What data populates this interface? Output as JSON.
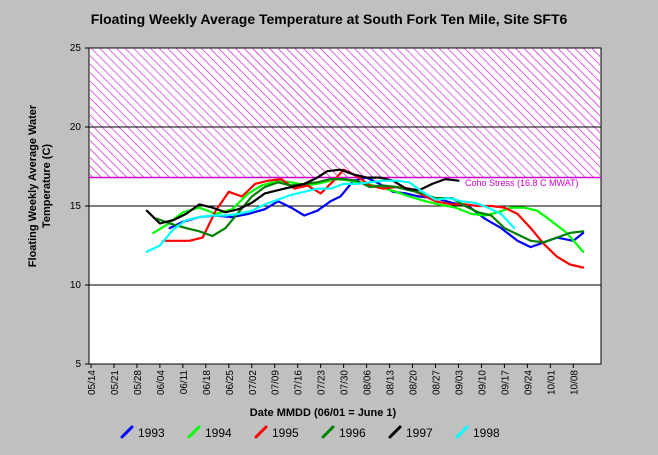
{
  "chart_data": {
    "type": "line",
    "title": "Floating Weekly Average Temperature at South Fork Ten Mile, Site SFT6",
    "xlabel": "Date MMDD (06/01 = June 1)",
    "ylabel_line1": "Floating Weekly Average Water",
    "ylabel_line2": "Temperature (C)",
    "ylim": [
      5,
      25
    ],
    "yticks": [
      5,
      10,
      15,
      20,
      25
    ],
    "xlim": [
      0,
      153
    ],
    "xticks": [
      {
        "label": "05/14",
        "day": 0
      },
      {
        "label": "05/21",
        "day": 7
      },
      {
        "label": "05/28",
        "day": 14
      },
      {
        "label": "06/04",
        "day": 21
      },
      {
        "label": "06/11",
        "day": 28
      },
      {
        "label": "06/18",
        "day": 35
      },
      {
        "label": "06/25",
        "day": 42
      },
      {
        "label": "07/02",
        "day": 49
      },
      {
        "label": "07/09",
        "day": 56
      },
      {
        "label": "07/16",
        "day": 63
      },
      {
        "label": "07/23",
        "day": 70
      },
      {
        "label": "07/30",
        "day": 77
      },
      {
        "label": "08/06",
        "day": 84
      },
      {
        "label": "08/13",
        "day": 91
      },
      {
        "label": "08/20",
        "day": 98
      },
      {
        "label": "08/27",
        "day": 105
      },
      {
        "label": "09/03",
        "day": 112
      },
      {
        "label": "09/10",
        "day": 119
      },
      {
        "label": "09/17",
        "day": 126
      },
      {
        "label": "09/24",
        "day": 133
      },
      {
        "label": "10/01",
        "day": 140
      },
      {
        "label": "10/08",
        "day": 147
      }
    ],
    "stress_band": {
      "from": 16.8,
      "to": 25,
      "label": "Coho Stress (16.8 C MWAT)",
      "color": "#cc00cc"
    },
    "grid_lines": [
      10,
      15,
      20
    ],
    "series": [
      {
        "name": "1993",
        "color": "#0000ff",
        "x": [
          24,
          28,
          33,
          38,
          43,
          48,
          53,
          57,
          61,
          65,
          69,
          73,
          76,
          80,
          84,
          88,
          92,
          96,
          100,
          105,
          110,
          115,
          120,
          125,
          130,
          134,
          138,
          142,
          147,
          150
        ],
        "y": [
          13.6,
          14.0,
          14.3,
          14.4,
          14.3,
          14.5,
          14.8,
          15.3,
          14.9,
          14.4,
          14.7,
          15.3,
          15.6,
          16.6,
          16.8,
          16.4,
          15.9,
          15.8,
          15.6,
          15.5,
          15.2,
          15.0,
          14.2,
          13.6,
          12.8,
          12.4,
          12.7,
          13.0,
          12.8,
          13.3
        ]
      },
      {
        "name": "1994",
        "color": "#00ff00",
        "x": [
          19,
          23,
          28,
          33,
          38,
          43,
          48,
          52,
          57,
          61,
          66,
          71,
          75,
          79,
          84,
          88,
          93,
          97,
          102,
          106,
          111,
          116,
          120,
          124,
          128,
          132,
          136,
          140,
          145,
          150
        ],
        "y": [
          13.3,
          13.8,
          14.6,
          14.9,
          14.5,
          14.8,
          15.8,
          16.3,
          16.6,
          16.5,
          16.3,
          16.5,
          16.7,
          16.6,
          16.4,
          16.2,
          15.9,
          15.6,
          15.3,
          15.1,
          14.9,
          14.5,
          14.4,
          14.6,
          14.9,
          14.9,
          14.7,
          14.1,
          13.3,
          12.1
        ]
      },
      {
        "name": "1995",
        "color": "#ff0000",
        "x": [
          22,
          26,
          30,
          34,
          38,
          42,
          46,
          50,
          54,
          58,
          62,
          66,
          70,
          74,
          77,
          81,
          85,
          89,
          93,
          97,
          101,
          105,
          110,
          114,
          118,
          122,
          126,
          130,
          134,
          138,
          142,
          146,
          150
        ],
        "y": [
          12.8,
          12.8,
          12.8,
          13.0,
          14.7,
          15.9,
          15.6,
          16.4,
          16.6,
          16.7,
          16.1,
          16.3,
          15.8,
          16.6,
          17.3,
          16.9,
          16.3,
          16.1,
          16.2,
          16.1,
          15.7,
          15.3,
          15.1,
          15.1,
          15.0,
          15.0,
          14.9,
          14.5,
          13.6,
          12.6,
          11.8,
          11.3,
          11.1
        ]
      },
      {
        "name": "1996",
        "color": "#008000",
        "x": [
          20,
          24,
          29,
          33,
          37,
          41,
          45,
          49,
          53,
          57,
          61,
          65,
          69,
          73,
          77,
          81,
          85,
          89,
          93,
          97,
          101,
          105,
          110,
          114,
          118,
          122,
          126,
          130,
          134,
          138,
          142,
          146,
          150
        ],
        "y": [
          14.2,
          13.9,
          13.6,
          13.4,
          13.1,
          13.6,
          14.6,
          15.6,
          16.2,
          16.5,
          16.3,
          16.4,
          16.5,
          16.7,
          16.7,
          16.6,
          16.2,
          16.3,
          16.2,
          16.0,
          15.8,
          15.5,
          15.5,
          15.0,
          14.6,
          14.4,
          13.6,
          13.2,
          12.8,
          12.7,
          13.0,
          13.3,
          13.4
        ]
      },
      {
        "name": "1997",
        "color": "#000000",
        "x": [
          17,
          21,
          25,
          29,
          33,
          37,
          41,
          45,
          49,
          53,
          57,
          61,
          65,
          69,
          72,
          76,
          80,
          84,
          88,
          92,
          96,
          100,
          104,
          108,
          112
        ],
        "y": [
          14.7,
          13.9,
          14.1,
          14.5,
          15.1,
          14.9,
          14.6,
          14.8,
          15.2,
          15.8,
          16.0,
          16.2,
          16.4,
          16.8,
          17.2,
          17.3,
          17.0,
          16.8,
          16.8,
          16.6,
          16.1,
          16.0,
          16.4,
          16.7,
          16.6
        ]
      },
      {
        "name": "1998",
        "color": "#00ffff",
        "x": [
          17,
          21,
          25,
          29,
          33,
          37,
          41,
          45,
          49,
          53,
          57,
          61,
          65,
          69,
          73,
          77,
          81,
          85,
          89,
          93,
          97,
          101,
          105,
          109,
          113,
          117,
          121,
          125,
          129
        ],
        "y": [
          12.1,
          12.5,
          13.5,
          14.1,
          14.3,
          14.4,
          14.4,
          14.5,
          14.7,
          15.1,
          15.4,
          15.7,
          15.9,
          16.1,
          16.1,
          16.4,
          16.4,
          16.5,
          16.6,
          16.6,
          16.5,
          15.9,
          15.4,
          15.5,
          15.3,
          15.2,
          14.9,
          14.5,
          13.6
        ]
      }
    ],
    "legend_position": "bottom"
  }
}
